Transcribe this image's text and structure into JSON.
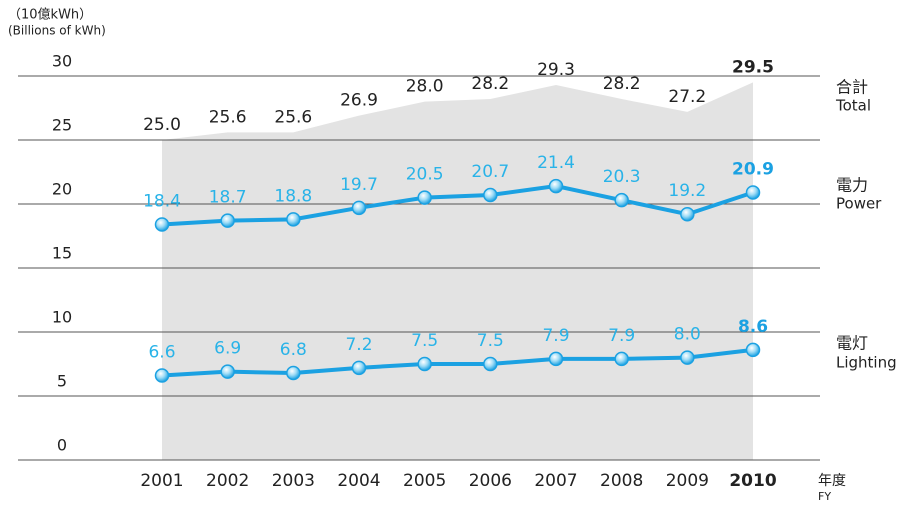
{
  "chart_data": {
    "type": "line",
    "unit_ja": "（10億kWh）",
    "unit": "(Billions of kWh)",
    "x_label_ja": "年度",
    "x_label": "FY",
    "categories": [
      "2001",
      "2002",
      "2003",
      "2004",
      "2005",
      "2006",
      "2007",
      "2008",
      "2009",
      "2010"
    ],
    "series": [
      {
        "name": "Total",
        "name_ja": "合計",
        "kind": "area",
        "color": "#e3e3e3",
        "label_color": "#222222",
        "values": [
          25.0,
          25.6,
          25.6,
          26.9,
          28.0,
          28.2,
          29.3,
          28.2,
          27.2,
          29.5
        ],
        "value_labels": [
          "25.0",
          "25.6",
          "25.6",
          "26.9",
          "28.0",
          "28.2",
          "29.3",
          "28.2",
          "27.2",
          "29.5"
        ]
      },
      {
        "name": "Power",
        "name_ja": "電力",
        "kind": "line",
        "color": "#1ba1e2",
        "label_color": "#29b3e8",
        "values": [
          18.4,
          18.7,
          18.8,
          19.7,
          20.5,
          20.7,
          21.4,
          20.3,
          19.2,
          20.9
        ],
        "value_labels": [
          "18.4",
          "18.7",
          "18.8",
          "19.7",
          "20.5",
          "20.7",
          "21.4",
          "20.3",
          "19.2",
          "20.9"
        ]
      },
      {
        "name": "Lighting",
        "name_ja": "電灯",
        "kind": "line",
        "color": "#1ba1e2",
        "label_color": "#29b3e8",
        "values": [
          6.6,
          6.9,
          6.8,
          7.2,
          7.5,
          7.5,
          7.9,
          7.9,
          8.0,
          8.6
        ],
        "value_labels": [
          "6.6",
          "6.9",
          "6.8",
          "7.2",
          "7.5",
          "7.5",
          "7.9",
          "7.9",
          "8.0",
          "8.6"
        ]
      }
    ],
    "ylim": [
      0,
      30
    ],
    "yticks": [
      0,
      5,
      10,
      15,
      20,
      25,
      30
    ],
    "grid": true
  }
}
